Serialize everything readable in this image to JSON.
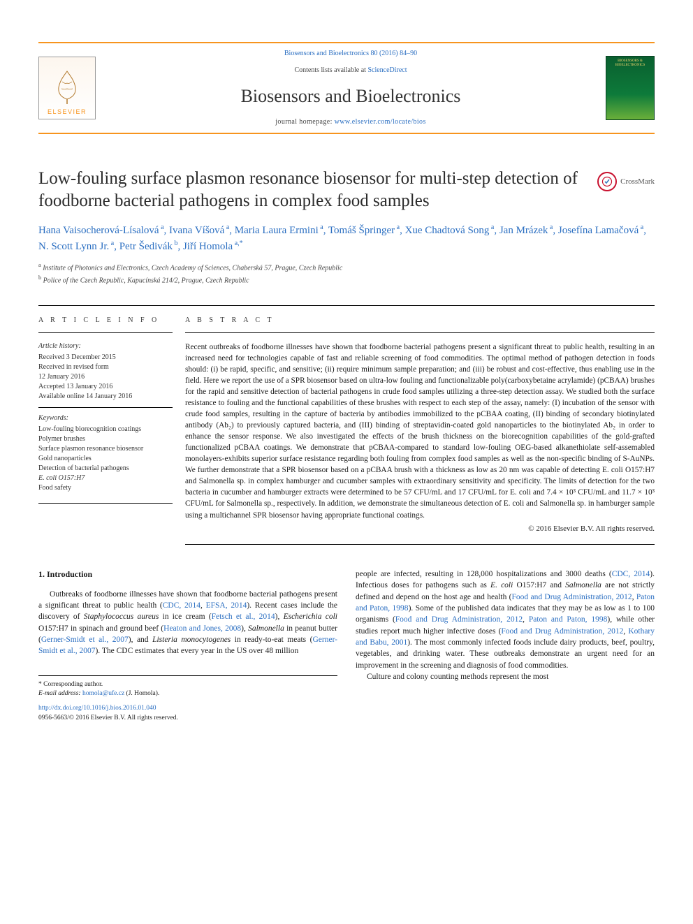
{
  "header": {
    "citation": "Biosensors and Bioelectronics 80 (2016) 84–90",
    "contents_prefix": "Contents lists available at ",
    "contents_link": "ScienceDirect",
    "journal_title": "Biosensors and Bioelectronics",
    "homepage_prefix": "journal homepage: ",
    "homepage_link": "www.elsevier.com/locate/bios",
    "publisher_logo_text": "ELSEVIER",
    "cover_title": "BIOSENSORS & BIOELECTRONICS",
    "header_border_color": "#f7941e",
    "link_color": "#2a6ec1"
  },
  "article": {
    "title": "Low-fouling surface plasmon resonance biosensor for multi-step detection of foodborne bacterial pathogens in complex food samples",
    "crossmark_label": "CrossMark",
    "authors_html": "Hana Vaisocherová-Lísalová<sup> a</sup>, Ivana Víšová<sup> a</sup>, Maria Laura Ermini<sup> a</sup>, Tomáš Špringer<sup> a</sup>, Xue Chadtová Song<sup> a</sup>, Jan Mrázek<sup> a</sup>, Josefína Lamačová<sup> a</sup>, N. Scott Lynn Jr.<sup> a</sup>, Petr Šedivák<sup> b</sup>, Jiří Homola<sup> a,</sup><sup>*</sup>",
    "affiliations": [
      {
        "sup": "a",
        "text": " Institute of Photonics and Electronics, Czech Academy of Sciences, Chaberská 57, Prague, Czech Republic"
      },
      {
        "sup": "b",
        "text": " Police of the Czech Republic, Kapucínská 214/2, Prague, Czech Republic"
      }
    ]
  },
  "info": {
    "section_label": "A R T I C L E  I N F O",
    "history_head": "Article history:",
    "history": [
      "Received 3 December 2015",
      "Received in revised form",
      "12 January 2016",
      "Accepted 13 January 2016",
      "Available online 14 January 2016"
    ],
    "keywords_head": "Keywords:",
    "keywords": [
      "Low-fouling biorecognition coatings",
      "Polymer brushes",
      "Surface plasmon resonance biosensor",
      "Gold nanoparticles",
      "Detection of bacterial pathogens",
      "E. coli O157:H7",
      "Food safety"
    ]
  },
  "abstract": {
    "section_label": "A B S T R A C T",
    "text": "Recent outbreaks of foodborne illnesses have shown that foodborne bacterial pathogens present a significant threat to public health, resulting in an increased need for technologies capable of fast and reliable screening of food commodities. The optimal method of pathogen detection in foods should: (i) be rapid, specific, and sensitive; (ii) require minimum sample preparation; and (iii) be robust and cost-effective, thus enabling use in the field. Here we report the use of a SPR biosensor based on ultra-low fouling and functionalizable poly(carboxybetaine acrylamide) (pCBAA) brushes for the rapid and sensitive detection of bacterial pathogens in crude food samples utilizing a three-step detection assay. We studied both the surface resistance to fouling and the functional capabilities of these brushes with respect to each step of the assay, namely: (I) incubation of the sensor with crude food samples, resulting in the capture of bacteria by antibodies immobilized to the pCBAA coating, (II) binding of secondary biotinylated antibody (Ab₂) to previously captured bacteria, and (III) binding of streptavidin-coated gold nanoparticles to the biotinylated Ab₂ in order to enhance the sensor response. We also investigated the effects of the brush thickness on the biorecognition capabilities of the gold-grafted functionalized pCBAA coatings. We demonstrate that pCBAA-compared to standard low-fouling OEG-based alkanethiolate self-assemabled monolayers-exhibits superior surface resistance regarding both fouling from complex food samples as well as the non-specific binding of S-AuNPs. We further demonstrate that a SPR biosensor based on a pCBAA brush with a thickness as low as 20 nm was capable of detecting E. coli O157:H7 and Salmonella sp. in complex hamburger and cucumber samples with extraordinary sensitivity and specificity. The limits of detection for the two bacteria in cucumber and hamburger extracts were determined to be 57 CFU/mL and 17 CFU/mL for E. coli and 7.4 × 10³ CFU/mL and 11.7 × 10³ CFU/mL for Salmonella sp., respectively. In addition, we demonstrate the simultaneous detection of E. coli and Salmonella sp. in hamburger sample using a multichannel SPR biosensor having appropriate functional coatings.",
    "copyright": "© 2016 Elsevier B.V. All rights reserved."
  },
  "body": {
    "intro_heading": "1.  Introduction",
    "left_para_html": "Outbreaks of foodborne illnesses have shown that foodborne bacterial pathogens present a significant threat to public health (<a>CDC, 2014</a>, <a>EFSA, 2014</a>). Recent cases include the discovery of <i>Staphylococcus aureus</i> in ice cream (<a>Fetsch et al., 2014</a>), <i>Escherichia coli</i> O157:H7 in spinach and ground beef (<a>Heaton and Jones, 2008</a>), <i>Salmonella</i> in peanut butter (<a>Gerner-Smidt et al., 2007</a>), and <i>Listeria monocytogenes</i> in ready-to-eat meats (<a>Gerner-Smidt et al., 2007</a>). The CDC estimates that every year in the US over 48 million",
    "right_para1_html": "people are infected, resulting in 128,000 hospitalizations and 3000 deaths (<a>CDC, 2014</a>). Infectious doses for pathogens such as <i>E. coli</i> O157:H7 and <i>Salmonella</i> are not strictly defined and depend on the host age and health (<a>Food and Drug Administration, 2012</a>, <a>Paton and Paton, 1998</a>). Some of the published data indicates that they may be as low as 1 to 100 organisms (<a>Food and Drug Administration, 2012</a>, <a>Paton and Paton, 1998</a>), while other studies report much higher infective doses (<a>Food and Drug Administration, 2012</a>, <a>Kothary and Babu, 2001</a>). The most commonly infected foods include dairy products, beef, poultry, vegetables, and drinking water. These outbreaks demonstrate an urgent need for an improvement in the screening and diagnosis of food commodities.",
    "right_para2_html": "Culture and colony counting methods represent the most"
  },
  "footnotes": {
    "corresponding": "* Corresponding author.",
    "email_label": "E-mail address: ",
    "email": "homola@ufe.cz",
    "email_suffix": " (J. Homola).",
    "doi": "http://dx.doi.org/10.1016/j.bios.2016.01.040",
    "issn_line": "0956-5663/© 2016 Elsevier B.V. All rights reserved."
  },
  "colors": {
    "link": "#2a6ec1",
    "orange": "#f7941e",
    "text": "#1a1a1a",
    "rule": "#000000",
    "cover_bg_top": "#0a5f2f",
    "cover_bg_mid": "#0d7a3a",
    "cover_bg_bottom": "#6aaf3a"
  },
  "typography": {
    "journal_title_pt": 26,
    "article_title_pt": 25,
    "authors_pt": 15,
    "abstract_pt": 11.3,
    "body_pt": 11.5,
    "info_pt": 10,
    "footnote_pt": 9.5
  }
}
